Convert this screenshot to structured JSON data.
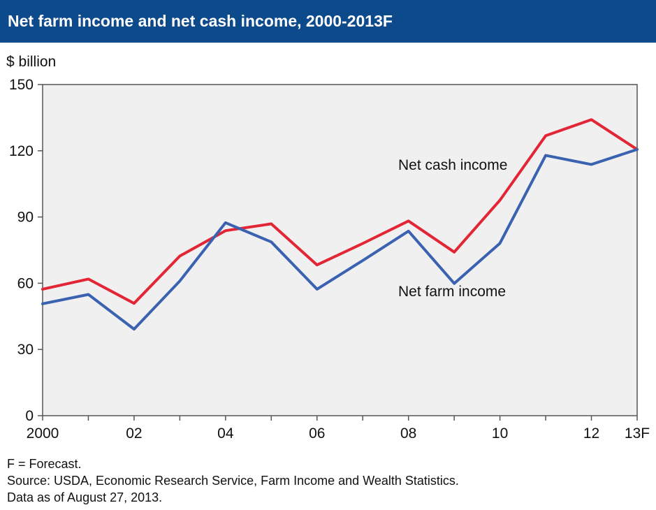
{
  "header": {
    "title": "Net farm income and net cash income, 2000-2013F"
  },
  "chart_data": {
    "type": "line",
    "ylabel": "$ billion",
    "ylim": [
      0,
      150
    ],
    "yticks": [
      0,
      30,
      60,
      90,
      120,
      150
    ],
    "x": [
      2000,
      2001,
      2002,
      2003,
      2004,
      2005,
      2006,
      2007,
      2008,
      2009,
      2010,
      2011,
      2012,
      2013
    ],
    "xticks": [
      {
        "x": 2000,
        "label": "2000"
      },
      {
        "x": 2002,
        "label": "02"
      },
      {
        "x": 2004,
        "label": "04"
      },
      {
        "x": 2006,
        "label": "06"
      },
      {
        "x": 2008,
        "label": "08"
      },
      {
        "x": 2010,
        "label": "10"
      },
      {
        "x": 2012,
        "label": "12"
      },
      {
        "x": 2013,
        "label": "13F"
      }
    ],
    "grid": false,
    "series": [
      {
        "name": "Net cash income",
        "color": "#e32636",
        "values": [
          57.3,
          61.9,
          50.9,
          72.3,
          83.8,
          86.9,
          68.3,
          78.0,
          88.2,
          74.1,
          97.6,
          126.8,
          134.1,
          120.6
        ]
      },
      {
        "name": "Net farm income",
        "color": "#3b62b0",
        "values": [
          50.7,
          54.9,
          39.2,
          61.0,
          87.4,
          78.7,
          57.3,
          70.3,
          83.6,
          59.9,
          78.1,
          117.9,
          113.8,
          120.6
        ]
      }
    ]
  },
  "footnotes": [
    "F = Forecast.",
    "Source: USDA, Economic Research Service, Farm Income and Wealth Statistics.",
    "Data as of August 27, 2013."
  ]
}
